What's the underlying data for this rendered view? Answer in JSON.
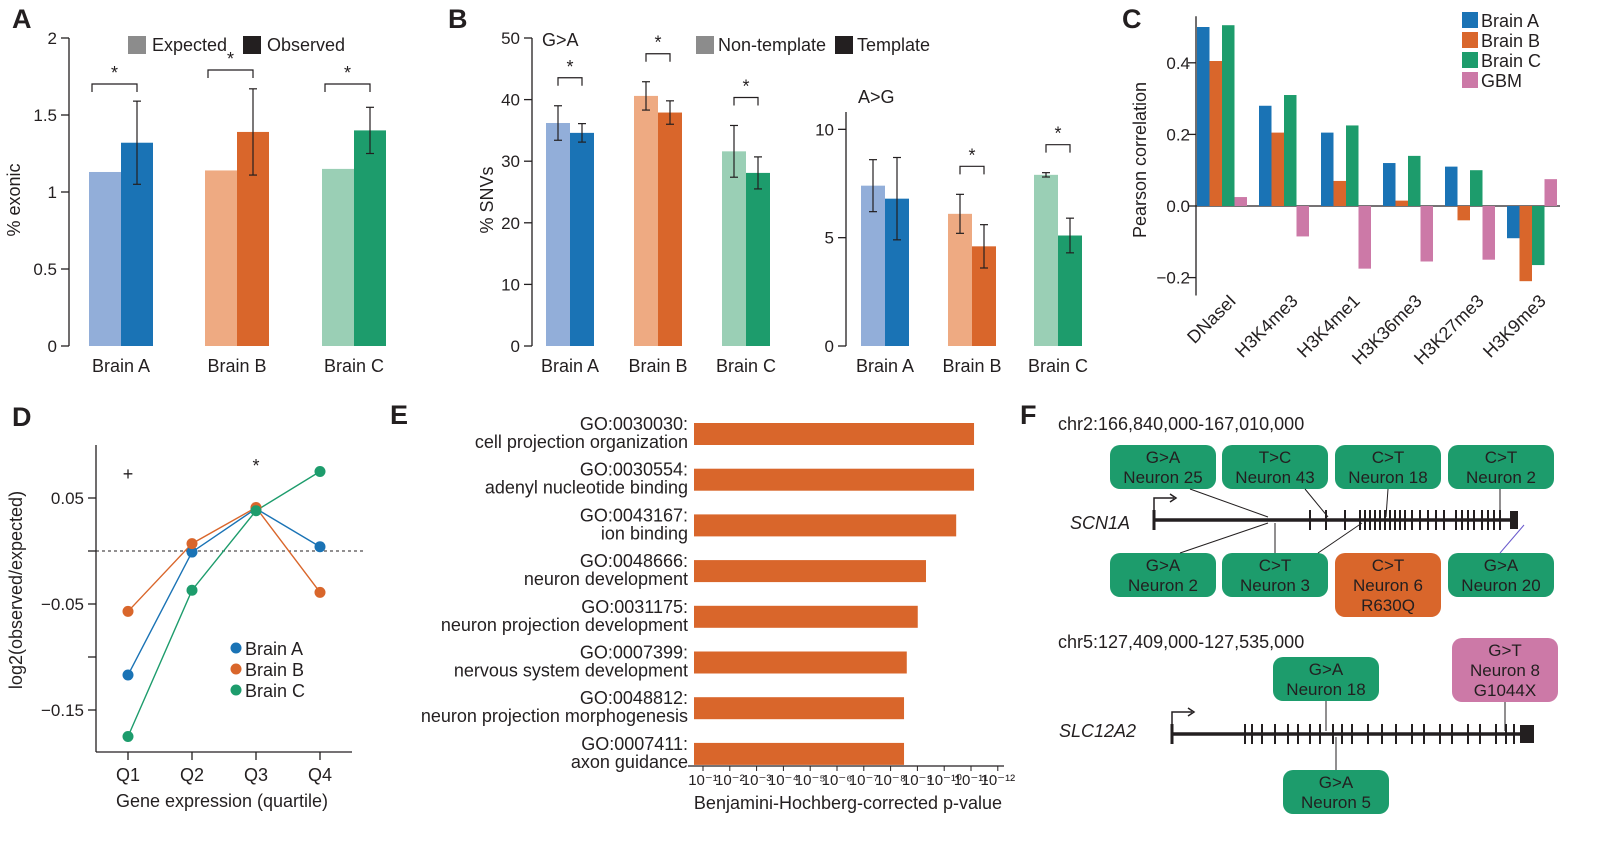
{
  "panels": {
    "A": "A",
    "B": "B",
    "C": "C",
    "D": "D",
    "E": "E",
    "F": "F"
  },
  "colors": {
    "blue": "#1a73b5",
    "blue_light": "#92aed9",
    "orange": "#d9662b",
    "orange_light": "#eeaa82",
    "green": "#1d9c6c",
    "green_light": "#9acfb5",
    "pink": "#cc79a7",
    "gray": "#8c8c8c",
    "black": "#231f20"
  },
  "chart_data": [
    {
      "id": "A",
      "type": "bar",
      "categories": [
        "Brain A",
        "Brain B",
        "Brain C"
      ],
      "series": [
        {
          "name": "Expected",
          "values": [
            1.13,
            1.14,
            1.15
          ]
        },
        {
          "name": "Observed",
          "values": [
            1.32,
            1.39,
            1.4
          ],
          "errors": [
            0.27,
            0.28,
            0.15
          ]
        }
      ],
      "ylabel": "% exonic",
      "ylim": [
        0,
        2
      ],
      "yticks": [
        "0",
        "0.5",
        "1",
        "1.5",
        "2"
      ],
      "significance": [
        "*",
        "*",
        "*"
      ]
    },
    {
      "id": "B1",
      "type": "bar",
      "annotation": "G>A",
      "categories": [
        "Brain A",
        "Brain B",
        "Brain C"
      ],
      "series": [
        {
          "name": "Non-template",
          "values": [
            36.2,
            40.6,
            31.6
          ],
          "errors": [
            2.8,
            2.3,
            4.2
          ]
        },
        {
          "name": "Template",
          "values": [
            34.6,
            37.9,
            28.1
          ],
          "errors": [
            1.5,
            1.9,
            2.6
          ]
        }
      ],
      "ylabel": "% SNVs",
      "ylim": [
        0,
        50
      ],
      "yticks": [
        "0",
        "10",
        "20",
        "30",
        "40",
        "50"
      ],
      "significance": [
        "*",
        "*",
        "*"
      ]
    },
    {
      "id": "B2",
      "type": "bar",
      "annotation": "A>G",
      "categories": [
        "Brain A",
        "Brain B",
        "Brain C"
      ],
      "series": [
        {
          "name": "Non-template",
          "values": [
            7.4,
            6.1,
            7.9
          ],
          "errors": [
            1.2,
            0.9,
            0.1
          ]
        },
        {
          "name": "Template",
          "values": [
            6.8,
            4.6,
            5.1
          ],
          "errors": [
            1.9,
            1.0,
            0.8
          ]
        }
      ],
      "ylim": [
        0,
        12
      ],
      "yticks": [
        "0",
        "5",
        "10"
      ],
      "significance": [
        "",
        "*",
        "*"
      ]
    },
    {
      "id": "C",
      "type": "bar",
      "categories": [
        "DNaseI",
        "H3K4me3",
        "H3K4me1",
        "H3K36me3",
        "H3K27me3",
        "H3K9me3"
      ],
      "series": [
        {
          "name": "Brain A",
          "values": [
            0.5,
            0.28,
            0.205,
            0.12,
            0.11,
            -0.09
          ]
        },
        {
          "name": "Brain B",
          "values": [
            0.405,
            0.205,
            0.07,
            0.015,
            -0.04,
            -0.21
          ]
        },
        {
          "name": "Brain C",
          "values": [
            0.505,
            0.31,
            0.225,
            0.14,
            0.1,
            -0.165
          ]
        },
        {
          "name": "GBM",
          "values": [
            0.025,
            -0.085,
            -0.175,
            -0.155,
            -0.15,
            0.075
          ]
        }
      ],
      "ylabel": "Pearson correlation",
      "ylim": [
        -0.25,
        0.55
      ],
      "yticks": [
        "−0.2",
        "0.0",
        "0.2",
        "0.4"
      ]
    },
    {
      "id": "D",
      "type": "line",
      "categories": [
        "Q1",
        "Q2",
        "Q3",
        "Q4"
      ],
      "series": [
        {
          "name": "Brain A",
          "values": [
            -0.117,
            -0.001,
            0.04,
            0.004
          ]
        },
        {
          "name": "Brain B",
          "values": [
            -0.057,
            0.007,
            0.041,
            -0.039
          ]
        },
        {
          "name": "Brain C",
          "values": [
            -0.175,
            -0.037,
            0.038,
            0.075
          ]
        }
      ],
      "xlabel": "Gene expression (quartile)",
      "ylabel": "log2(observed/expected)",
      "ylim": [
        -0.19,
        0.1
      ],
      "yticks": [
        "−0.15",
        "−0.05",
        "0.05"
      ],
      "annotations": [
        "+",
        "*"
      ]
    },
    {
      "id": "E",
      "type": "bar",
      "orientation": "horizontal",
      "categories": [
        {
          "id": "GO:0030030:",
          "name": "cell projection organization"
        },
        {
          "id": "GO:0030554:",
          "name": "adenyl nucleotide binding"
        },
        {
          "id": "GO:0043167:",
          "name": "ion binding"
        },
        {
          "id": "GO:0048666:",
          "name": "neuron development"
        },
        {
          "id": "GO:0031175:",
          "name": "neuron projection development"
        },
        {
          "id": "GO:0007399:",
          "name": "nervous system development"
        },
        {
          "id": "GO:0048812:",
          "name": "neuron projection morphogenesis"
        },
        {
          "id": "GO:0007411:",
          "name": "axon guidance"
        }
      ],
      "neg_log10_p": [
        11.2,
        11.2,
        10.55,
        9.45,
        9.15,
        8.75,
        8.65,
        8.65
      ],
      "xlabel": "Benjamini-Hochberg-corrected p-value",
      "xlim": [
        1,
        12
      ],
      "xticks": [
        "10⁻¹",
        "10⁻²",
        "10⁻³",
        "10⁻⁴",
        "10⁻⁵",
        "10⁻⁶",
        "10⁻⁷",
        "10⁻⁸",
        "10⁻⁹",
        "10⁻¹⁰",
        "10⁻¹¹",
        "10⁻¹²"
      ]
    }
  ],
  "panelF": {
    "locus1": {
      "coords": "chr2:166,840,000-167,010,000",
      "gene": "SCN1A",
      "top_boxes": [
        {
          "mut": "G>A",
          "neuron": "Neuron 25"
        },
        {
          "mut": "T>C",
          "neuron": "Neuron 43"
        },
        {
          "mut": "C>T",
          "neuron": "Neuron 18"
        },
        {
          "mut": "C>T",
          "neuron": "Neuron 2"
        }
      ],
      "bottom_boxes": [
        {
          "mut": "G>A",
          "neuron": "Neuron 2"
        },
        {
          "mut": "C>T",
          "neuron": "Neuron 3"
        },
        {
          "mut": "C>T",
          "neuron": "Neuron 6",
          "extra": "R630Q"
        },
        {
          "mut": "G>A",
          "neuron": "Neuron 20"
        }
      ]
    },
    "locus2": {
      "coords": "chr5:127,409,000-127,535,000",
      "gene": "SLC12A2",
      "top_boxes": [
        {
          "mut": "G>A",
          "neuron": "Neuron 18"
        },
        {
          "mut": "G>T",
          "neuron": "Neuron 8",
          "extra": "G1044X"
        }
      ],
      "bottom_boxes": [
        {
          "mut": "G>A",
          "neuron": "Neuron 5"
        }
      ]
    }
  }
}
